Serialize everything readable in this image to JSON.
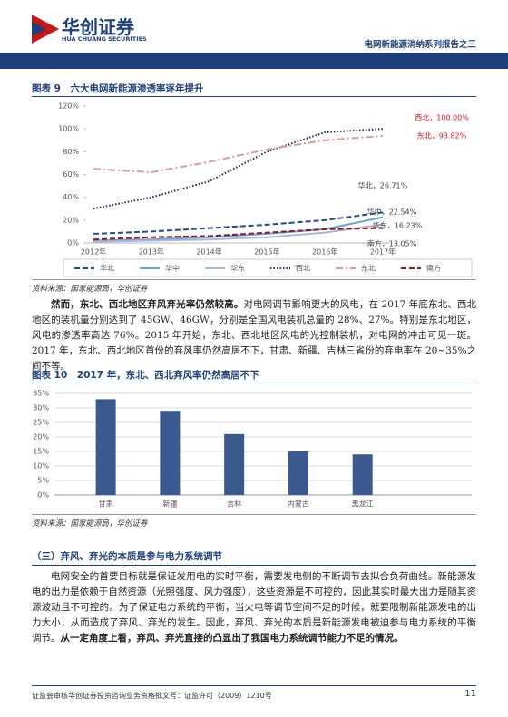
{
  "header": {
    "brand": "华创证券",
    "brand_en": "HUA CHUANG SECURITIES",
    "report": "电网新能源消纳系列报告之三"
  },
  "chart_data": [
    {
      "type": "line",
      "title": "图表 9　六大电网新能源渗透率逐年提升",
      "categories": [
        "2012年",
        "2013年",
        "2014年",
        "2015年",
        "2016年",
        "2017年"
      ],
      "series": [
        {
          "name": "华北",
          "color": "#1f4e8c",
          "style": "dashed",
          "values": [
            8,
            10,
            13,
            16,
            20,
            26.71
          ]
        },
        {
          "name": "华中",
          "color": "#6f9fd8",
          "style": "solid",
          "values": [
            2,
            3,
            5,
            8,
            12,
            22.54
          ]
        },
        {
          "name": "华东",
          "color": "#aab8d8",
          "style": "solid",
          "values": [
            1,
            2,
            3,
            5,
            9,
            16.23
          ]
        },
        {
          "name": "西北",
          "color": "#1b2a5a",
          "style": "dotted",
          "values": [
            30,
            40,
            54,
            80,
            97,
            100
          ]
        },
        {
          "name": "东北",
          "color": "#e09a9a",
          "style": "dashdot",
          "values": [
            65,
            62,
            71,
            82,
            90,
            93.82
          ]
        },
        {
          "name": "南方",
          "color": "#8b1a1a",
          "style": "dashed",
          "values": [
            3,
            5,
            6,
            9,
            12,
            13.05
          ]
        }
      ],
      "annotations": [
        "西北，100.00%",
        "东北，93.82%",
        "华北，26.71%",
        "华中，22.54%",
        "华东，16.23%",
        "南方，13.05%"
      ],
      "ylim": [
        0,
        120
      ],
      "yticks": [
        {
          "value": 0,
          "label": "0%"
        },
        {
          "value": 20,
          "label": "20%"
        },
        {
          "value": 40,
          "label": "40%"
        },
        {
          "value": 60,
          "label": "60%"
        },
        {
          "value": 80,
          "label": "80%"
        },
        {
          "value": 100,
          "label": "100%"
        },
        {
          "value": 120,
          "label": "120%"
        }
      ],
      "grid": false,
      "legend": "bottom",
      "source": "资料来源：国家能源局，华创证券"
    },
    {
      "type": "bar",
      "title": "图表 10　2017 年，东北、西北弃风率仍然高居不下",
      "categories": [
        "甘肃",
        "新疆",
        "吉林",
        "内蒙古",
        "黑龙江"
      ],
      "values": [
        33,
        29,
        21,
        15,
        14
      ],
      "color": "#3a5a8f",
      "ylim": [
        0,
        35
      ],
      "yticks": [
        {
          "value": 0,
          "label": "0%"
        },
        {
          "value": 5,
          "label": "5%"
        },
        {
          "value": 10,
          "label": "10%"
        },
        {
          "value": 15,
          "label": "15%"
        },
        {
          "value": 20,
          "label": "20%"
        },
        {
          "value": 25,
          "label": "25%"
        },
        {
          "value": 30,
          "label": "30%"
        },
        {
          "value": 35,
          "label": "35%"
        }
      ],
      "grid": true,
      "source": "资料来源：国家能源局，华创证券"
    }
  ],
  "document": {
    "paragraph_1": [
      "然而，东北、西北地区弃风弃光率仍然较高。",
      "对电网调节影响更大的风电，在 2017 年底东北、西北地区的装机量分别达到了 45GW、46GW，分别是全国风电装机总量的 28%、27%。特别是东北地区，风电的渗透率高达 76%。2015 年开始，东北、西北地区风电的光控制装机，对电网的冲击可见一斑。2017 年，东北、西北地区首份的弃风率仍然高居不下，甘肃、新疆、吉林三省份的弃电率在 20~35%之间不等。"
    ],
    "section_heading": "（三）弃风、弃光的本质是参与电力系统调节",
    "paragraph_2": [
      "电网安全的首要目标就是保证发用电的实时平衡，需要发电侧的不断调节去拟合负荷曲线。新能源发电的出力是依赖于自然资源（光照强度、风力强度），这些资源是不可控的，因此其实时最大出力是随其资源波动且不可控的。为了保证电力系统的平衡，当火电等调节空间不足的时候，就要限制新能源发电的出力大小，从而造成了弃风、弃光的发生。因此，弃风、弃光的本质是新能源发电被迫参与电力系统的平衡调节。",
      "从一定角度上看，弃风、弃光直接的凸显出了我国电力系统调节能力不足的情况。"
    ]
  },
  "footer": {
    "license": "证监会审核华创证券投资咨询业务资格批文号：证监许可（2009）1210号",
    "page": "11"
  }
}
